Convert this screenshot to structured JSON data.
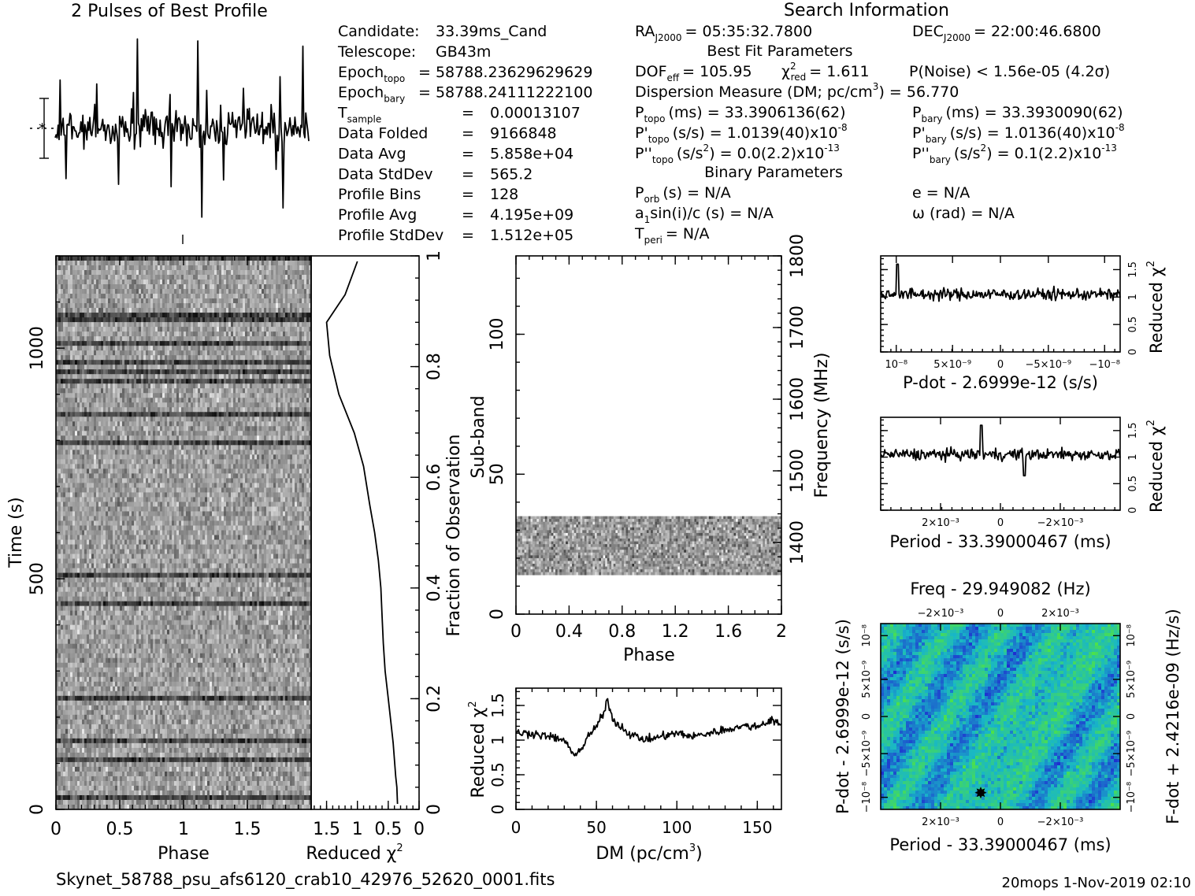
{
  "profile": {
    "title": "2 Pulses of Best Profile"
  },
  "info": {
    "search_title": "Search Information",
    "left": [
      {
        "label": "Candidate:",
        "value": "33.39ms_Cand"
      },
      {
        "label": "Telescope:",
        "value": "GB43m"
      },
      {
        "label": "Epoch",
        "sub": "topo",
        "value": "= 58788.23629629629"
      },
      {
        "label": "Epoch",
        "sub": "bary",
        "value": "= 58788.24111222100"
      },
      {
        "label": "T",
        "sub": "sample",
        "eq": "=",
        "value": "0.00013107"
      },
      {
        "label": "Data Folded",
        "eq": "=",
        "value": "9166848"
      },
      {
        "label": "Data Avg",
        "eq": "=",
        "value": "5.858e+04"
      },
      {
        "label": "Data StdDev",
        "eq": "=",
        "value": "565.2"
      },
      {
        "label": "Profile Bins",
        "eq": "=",
        "value": "128"
      },
      {
        "label": "Profile Avg",
        "eq": "=",
        "value": "4.195e+09"
      },
      {
        "label": "Profile StdDev",
        "eq": "=",
        "value": "1.512e+05"
      }
    ],
    "ra": {
      "label": "RA",
      "sub": "J2000",
      "value": "= 05:35:32.7800"
    },
    "dec": {
      "label": "DEC",
      "sub": "J2000",
      "value": "= 22:00:46.6800"
    },
    "best_fit_title": "Best Fit Parameters",
    "dof": {
      "label": "DOF",
      "sub": "eff",
      "value": "= 105.95"
    },
    "chi2": {
      "label": "χ",
      "sup": "2",
      "sub": "red",
      "value": "= 1.611"
    },
    "pnoise": {
      "value": "P(Noise) < 1.56e-05  (4.2σ)"
    },
    "dm": {
      "label": "Dispersion Measure (DM; pc/cm",
      "sup": "3",
      "value": ") = 56.770"
    },
    "ptopo": {
      "label": "P",
      "sub": "topo",
      "value": "(ms) =  33.3906136(62)"
    },
    "pbary": {
      "label": "P",
      "sub": "bary",
      "value": "(ms) =  33.3930090(62)"
    },
    "pdtopo": {
      "label": "P'",
      "sub": "topo",
      "value": "(s/s) =  1.0139(40)x10",
      "sup": "-8"
    },
    "pdbary": {
      "label": "P'",
      "sub": "bary",
      "value": "(s/s) =  1.0136(40)x10",
      "sup": "-8"
    },
    "pddtopo": {
      "label": "P''",
      "sub": "topo",
      "value": "(s/s",
      "sup2": "2",
      "value2": ") = 0.0(2.2)x10",
      "sup": "-13"
    },
    "pddbary": {
      "label": "P''",
      "sub": "bary",
      "value": "(s/s",
      "sup2": "2",
      "value2": ") =  0.1(2.2)x10",
      "sup": "-13"
    },
    "binary_title": "Binary Parameters",
    "porb": {
      "label": "P",
      "sub": "orb",
      "value": "(s) = N/A"
    },
    "a1": {
      "label": "a",
      "sub": "1",
      "value": "sin(i)/c (s) = N/A"
    },
    "tperi": {
      "label": "T",
      "sub": "peri",
      "value": "= N/A"
    },
    "e": {
      "value": "e = N/A"
    },
    "omega": {
      "value": "ω (rad) = N/A"
    }
  },
  "footer": {
    "filename": "Skynet_58788_psu_afs6120_crab10_42976_52620_0001.fits",
    "stamp": "20mops   1-Nov-2019 02:10"
  },
  "chart_data": [
    {
      "type": "line",
      "name": "pulse-profile",
      "title": "2 Pulses of Best Profile",
      "xlabel": "",
      "ylabel": "",
      "x_range": [
        0,
        2
      ],
      "note": "noise-like profile, no visible pulse"
    },
    {
      "type": "heatmap",
      "name": "time-phase",
      "xlabel": "Phase",
      "ylabel": "Time (s)",
      "xlim": [
        0,
        2
      ],
      "ylim": [
        0,
        1200
      ],
      "xticks": [
        "0",
        "0.5",
        "1",
        "1.5"
      ],
      "yticks": [
        "0",
        "500",
        "1000"
      ]
    },
    {
      "type": "line",
      "name": "reduced-chi2-vs-time",
      "xlabel": "Reduced χ2",
      "ylabel": "Fraction of Observation",
      "xlim": [
        1.75,
        0
      ],
      "ylim": [
        0,
        1
      ],
      "xticks": [
        "1.5",
        "1",
        "0.5",
        "0"
      ],
      "yticks": [
        "0",
        "0.2",
        "0.4",
        "0.6",
        "0.8",
        "1"
      ],
      "x": [
        1.0,
        1.2,
        1.5,
        1.45,
        1.3,
        1.05,
        0.9,
        0.8,
        0.72,
        0.66,
        0.62,
        0.6,
        0.58,
        0.55,
        0.5,
        0.45,
        0.42,
        0.4,
        0.38,
        0.36,
        0.35
      ],
      "y": [
        0.99,
        0.93,
        0.88,
        0.82,
        0.75,
        0.68,
        0.62,
        0.55,
        0.5,
        0.45,
        0.4,
        0.35,
        0.3,
        0.25,
        0.2,
        0.15,
        0.12,
        0.09,
        0.06,
        0.04,
        0.01
      ]
    },
    {
      "type": "heatmap",
      "name": "subband-phase",
      "xlabel": "Phase",
      "ylabel": "Sub-band",
      "y2label": "Frequency (MHz)",
      "xlim": [
        0,
        2
      ],
      "ylim": [
        0,
        128
      ],
      "y2lim": [
        1300,
        1800
      ],
      "xticks": [
        "0",
        "0.4",
        "0.8",
        "1.2",
        "1.6",
        "2"
      ],
      "yticks": [
        "0",
        "50",
        "100"
      ],
      "y2ticks": [
        "1400",
        "1500",
        "1600",
        "1700",
        "1800"
      ],
      "band_subbands": [
        14,
        35
      ]
    },
    {
      "type": "line",
      "name": "chi2-vs-dm",
      "xlabel": "DM (pc/cm3)",
      "ylabel": "Reduced χ2",
      "xlim": [
        0,
        165
      ],
      "ylim": [
        0,
        1.75
      ],
      "xticks": [
        "0",
        "50",
        "100",
        "150"
      ],
      "yticks": [
        "0",
        "0.5",
        "1",
        "1.5"
      ],
      "x": [
        0,
        10,
        20,
        30,
        35,
        40,
        45,
        50,
        55,
        57,
        60,
        65,
        70,
        80,
        90,
        100,
        110,
        120,
        130,
        140,
        150,
        160,
        165
      ],
      "y": [
        1.1,
        1.1,
        1.05,
        1.0,
        0.8,
        0.85,
        1.05,
        1.2,
        1.4,
        1.6,
        1.3,
        1.2,
        1.1,
        1.0,
        1.05,
        1.1,
        1.05,
        1.1,
        1.15,
        1.2,
        1.2,
        1.3,
        1.2
      ]
    },
    {
      "type": "line",
      "name": "chi2-vs-pdot",
      "xlabel": "P-dot - 2.6999e-12 (s/s)",
      "ylabel": "Reduced χ2",
      "ylim": [
        0,
        1.75
      ],
      "xticks": [
        "10⁻⁸",
        "5×10⁻⁹",
        "0",
        "−5×10⁻⁹",
        "−10⁻⁸"
      ],
      "yticks": [
        "0",
        "0.5",
        "1",
        "1.5"
      ],
      "mean": 1.05,
      "peak_x": 0.07,
      "peak_y": 1.6
    },
    {
      "type": "line",
      "name": "chi2-vs-period",
      "xlabel": "Period - 33.39000467 (ms)",
      "ylabel": "Reduced χ2",
      "ylim": [
        0,
        1.75
      ],
      "xticks": [
        "2×10⁻³",
        "0",
        "−2×10⁻³"
      ],
      "yticks": [
        "0",
        "0.5",
        "1",
        "1.5"
      ],
      "mean": 1.05,
      "peak_x": 0.42,
      "peak_y": 1.6
    },
    {
      "type": "heatmap",
      "name": "period-pdot-plane",
      "title": "Freq - 29.949082 (Hz)",
      "xlabel": "Period - 33.39000467 (ms)",
      "ylabel": "P-dot - 2.6999e-12 (s/s)",
      "y2label": "F-dot + 2.4216e-09 (Hz/s)",
      "xticks": [
        "2×10⁻³",
        "0",
        "−2×10⁻³"
      ],
      "x2ticks": [
        "−2×10⁻³",
        "0",
        "2×10⁻³"
      ],
      "yticks": [
        "10⁻⁸",
        "5×10⁻⁹",
        "0",
        "−5×10⁻⁹",
        "−10⁻⁸"
      ],
      "y2ticks": [
        "−10⁻⁸",
        "−5×10⁻⁹",
        "0",
        "5×10⁻⁹",
        "10⁻⁸"
      ],
      "best_marker": {
        "x_frac": 0.42,
        "y_frac": 0.93
      },
      "colors": {
        "low": "#1f2fd0",
        "mid": "#18b6c8",
        "high": "#4ce14a"
      }
    }
  ]
}
